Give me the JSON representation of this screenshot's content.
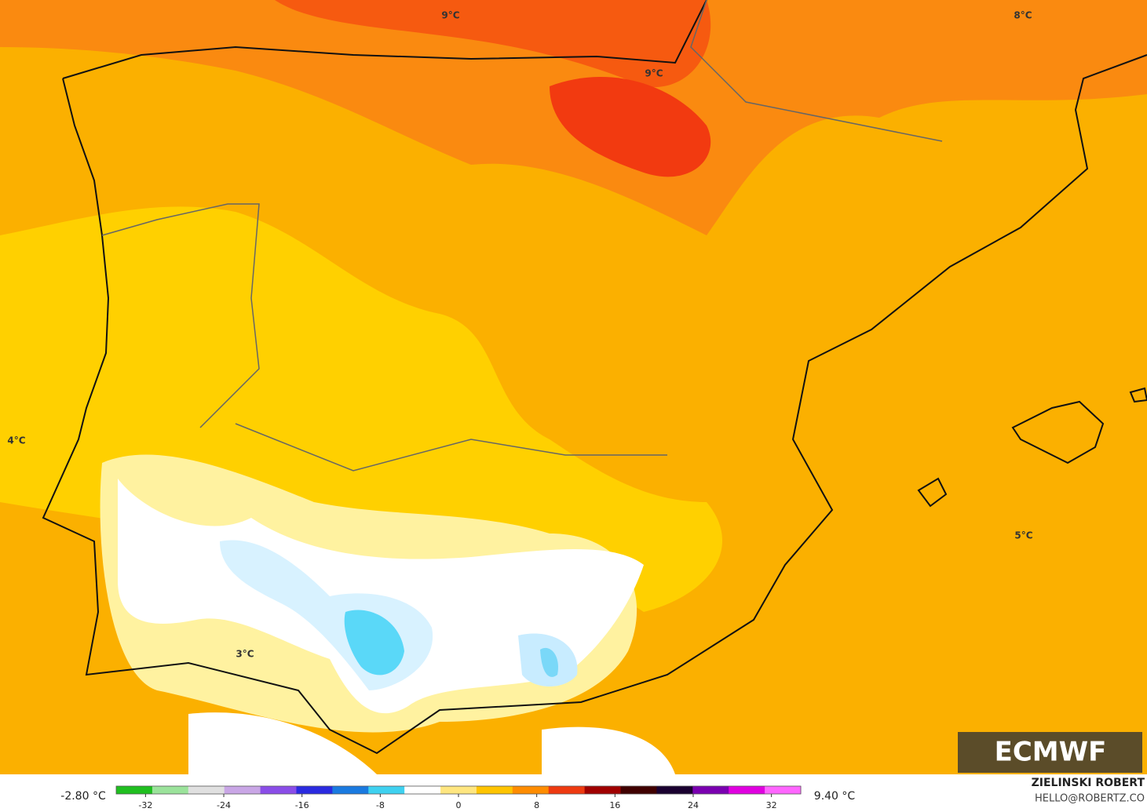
{
  "map": {
    "contour_labels": [
      "9°C",
      "8°C",
      "9°C",
      "4°C",
      "5°C",
      "3°C"
    ],
    "logo": "ECMWF",
    "credit": {
      "name": "ZIELINSKI ROBERT",
      "email": "HELLO@ROBERTZ.CO"
    }
  },
  "colorbar": {
    "min_label": "-2.80 °C",
    "max_label": "9.40 °C",
    "range": [
      -35,
      35
    ],
    "ticks": [
      -32,
      -24,
      -16,
      -8,
      0,
      8,
      16,
      24,
      32
    ],
    "colors": [
      "#1fbf1f",
      "#9be39b",
      "#e0e0e0",
      "#c9a6e6",
      "#8a4de8",
      "#2a2ae0",
      "#1a7ae0",
      "#3fd1f0",
      "#ffffff",
      "#ffe680",
      "#ffc400",
      "#ff8c00",
      "#ee3a10",
      "#a00000",
      "#400000",
      "#1a0030",
      "#7a00b0",
      "#e000e0",
      "#ff66ff"
    ]
  }
}
